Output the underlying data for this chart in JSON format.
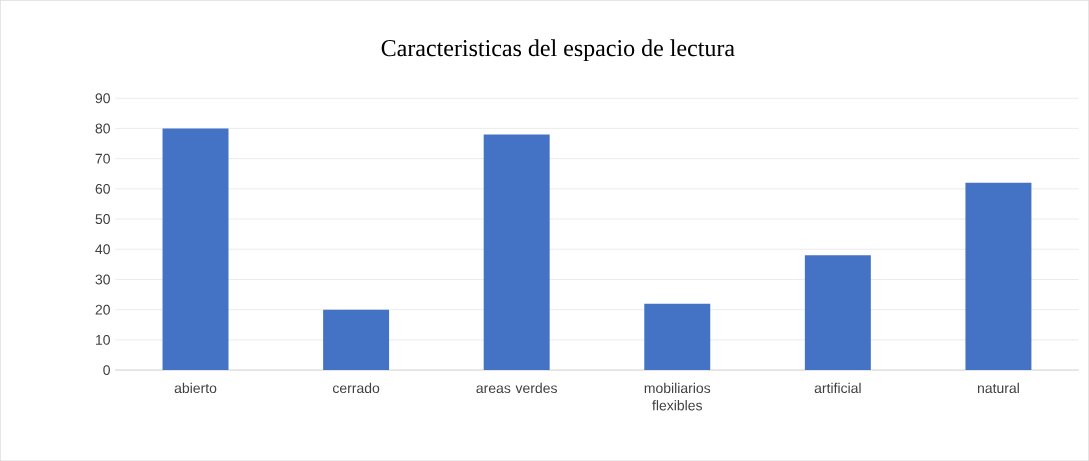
{
  "chart_data": {
    "type": "bar",
    "title": "Caracteristicas del espacio de lectura",
    "categories": [
      "abierto",
      "cerrado",
      "areas verdes",
      "mobiliarios flexibles",
      "artificial",
      "natural"
    ],
    "values": [
      80,
      20,
      78,
      22,
      38,
      62
    ],
    "color": "#4472c4",
    "ylim": [
      0,
      90
    ],
    "yticks": [
      0,
      10,
      20,
      30,
      40,
      50,
      60,
      70,
      80,
      90
    ],
    "grid": "y"
  }
}
